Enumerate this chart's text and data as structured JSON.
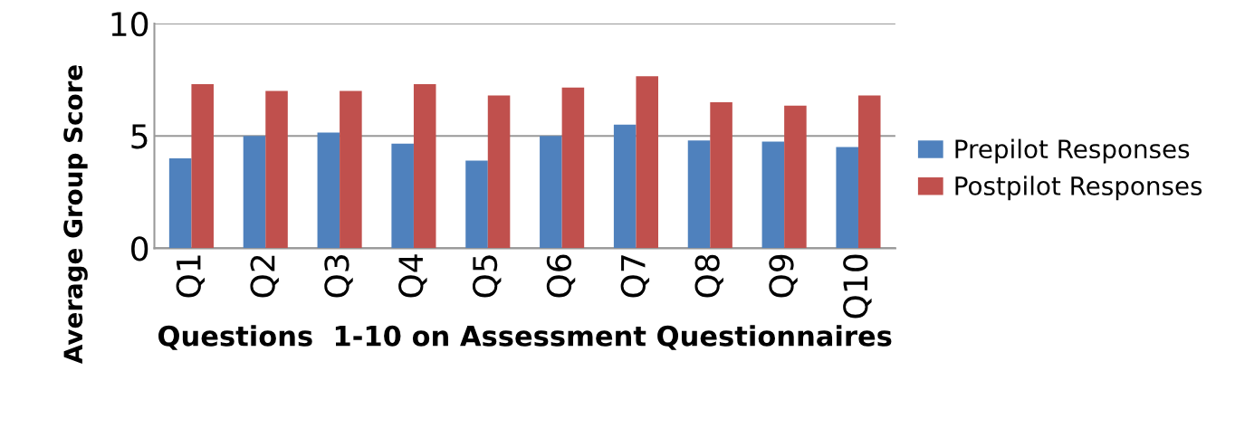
{
  "chart_data": {
    "type": "bar",
    "categories": [
      "Q1",
      "Q2",
      "Q3",
      "Q4",
      "Q5",
      "Q6",
      "Q7",
      "Q8",
      "Q9",
      "Q10"
    ],
    "series": [
      {
        "name": "Prepilot Responses",
        "color": "#4f81bd",
        "values": [
          4.0,
          5.0,
          5.15,
          4.65,
          3.9,
          5.0,
          5.5,
          4.8,
          4.75,
          4.5
        ]
      },
      {
        "name": "Postpilot Responses",
        "color": "#c0504d",
        "values": [
          7.3,
          7.0,
          7.0,
          7.3,
          6.8,
          7.15,
          7.65,
          6.5,
          6.35,
          6.8
        ]
      }
    ],
    "xlabel": "Questions  1-10 on Assessment Questionnaires",
    "ylabel": "Average Group Score",
    "ylim": [
      0,
      10
    ],
    "yticks": [
      0,
      5,
      10
    ],
    "grid": "y",
    "legend": "right"
  }
}
